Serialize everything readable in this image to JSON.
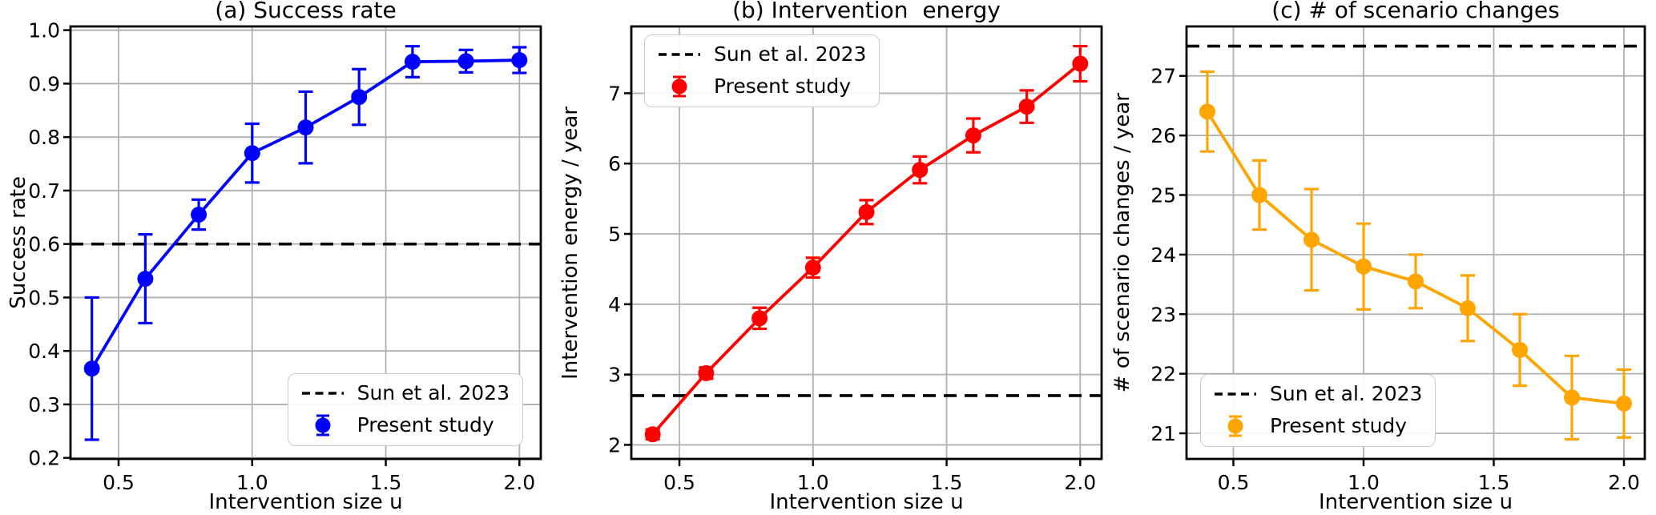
{
  "figure": {
    "background": "#ffffff",
    "frame_color": "#000000"
  },
  "chart_data": [
    {
      "type": "line",
      "title": "(a) Success rate",
      "xlabel": "Intervention size u",
      "ylabel": "Success rate",
      "color": "#0000ff",
      "grid": true,
      "grid_color": "#b0b0b0",
      "legend": [
        "Sun et al. 2023",
        "Present study"
      ],
      "legend_loc": "lower-right",
      "baseline": {
        "label": "Sun et al. 2023",
        "value": 0.6,
        "style": "dashed",
        "color": "#000000"
      },
      "series": [
        {
          "name": "Present study",
          "x": [
            0.4,
            0.6,
            0.8,
            1.0,
            1.2,
            1.4,
            1.6,
            1.8,
            2.0
          ],
          "y": [
            0.367,
            0.535,
            0.655,
            0.77,
            0.818,
            0.875,
            0.941,
            0.942,
            0.944
          ],
          "yerr": [
            0.133,
            0.083,
            0.028,
            0.055,
            0.067,
            0.052,
            0.029,
            0.021,
            0.024
          ]
        }
      ],
      "xlim": [
        0.32,
        2.08
      ],
      "ylim": [
        0.198,
        1.007
      ],
      "xticks": [
        0.5,
        1.0,
        1.5,
        2.0
      ],
      "xtick_labels": [
        "0.5",
        "1.0",
        "1.5",
        "2.0"
      ],
      "yticks": [
        0.2,
        0.3,
        0.4,
        0.5,
        0.6,
        0.7,
        0.8,
        0.9,
        1.0
      ],
      "ytick_labels": [
        "0.2",
        "0.3",
        "0.4",
        "0.5",
        "0.6",
        "0.7",
        "0.8",
        "0.9",
        "1.0"
      ]
    },
    {
      "type": "line",
      "title": "(b) Intervention  energy",
      "xlabel": "Intervention size u",
      "ylabel": "Intervention energy / year",
      "color": "#ff0000",
      "grid": true,
      "grid_color": "#b0b0b0",
      "legend": [
        "Sun et al. 2023",
        "Present study"
      ],
      "legend_loc": "upper-left",
      "baseline": {
        "label": "Sun et al. 2023",
        "value": 2.7,
        "style": "dashed",
        "color": "#000000"
      },
      "series": [
        {
          "name": "Present study",
          "x": [
            0.4,
            0.6,
            0.8,
            1.0,
            1.2,
            1.4,
            1.6,
            1.8,
            2.0
          ],
          "y": [
            2.15,
            3.02,
            3.8,
            4.52,
            5.31,
            5.91,
            6.4,
            6.81,
            7.42
          ],
          "yerr": [
            0.07,
            0.08,
            0.15,
            0.14,
            0.17,
            0.19,
            0.24,
            0.23,
            0.25
          ]
        }
      ],
      "xlim": [
        0.32,
        2.08
      ],
      "ylim": [
        1.8,
        7.95
      ],
      "xticks": [
        0.5,
        1.0,
        1.5,
        2.0
      ],
      "xtick_labels": [
        "0.5",
        "1.0",
        "1.5",
        "2.0"
      ],
      "yticks": [
        2,
        3,
        4,
        5,
        6,
        7
      ],
      "ytick_labels": [
        "2",
        "3",
        "4",
        "5",
        "6",
        "7"
      ]
    },
    {
      "type": "line",
      "title": "(c) # of scenario changes",
      "xlabel": "Intervention size u",
      "ylabel": "# of scenario changes / year",
      "color": "#ffa500",
      "grid": true,
      "grid_color": "#b0b0b0",
      "legend": [
        "Sun et al. 2023",
        "Present study"
      ],
      "legend_loc": "lower-left",
      "baseline": {
        "label": "Sun et al. 2023",
        "value": 27.5,
        "style": "dashed",
        "color": "#000000"
      },
      "series": [
        {
          "name": "Present study",
          "x": [
            0.4,
            0.6,
            0.8,
            1.0,
            1.2,
            1.4,
            1.6,
            1.8,
            2.0
          ],
          "y": [
            26.4,
            25.0,
            24.25,
            23.8,
            23.55,
            23.1,
            22.4,
            21.6,
            21.5
          ],
          "yerr": [
            0.67,
            0.58,
            0.85,
            0.72,
            0.45,
            0.55,
            0.6,
            0.7,
            0.57
          ]
        }
      ],
      "xlim": [
        0.32,
        2.08
      ],
      "ylim": [
        20.57,
        27.83
      ],
      "xticks": [
        0.5,
        1.0,
        1.5,
        2.0
      ],
      "xtick_labels": [
        "0.5",
        "1.0",
        "1.5",
        "2.0"
      ],
      "yticks": [
        21,
        22,
        23,
        24,
        25,
        26,
        27
      ],
      "ytick_labels": [
        "21",
        "22",
        "23",
        "24",
        "25",
        "26",
        "27"
      ]
    }
  ]
}
